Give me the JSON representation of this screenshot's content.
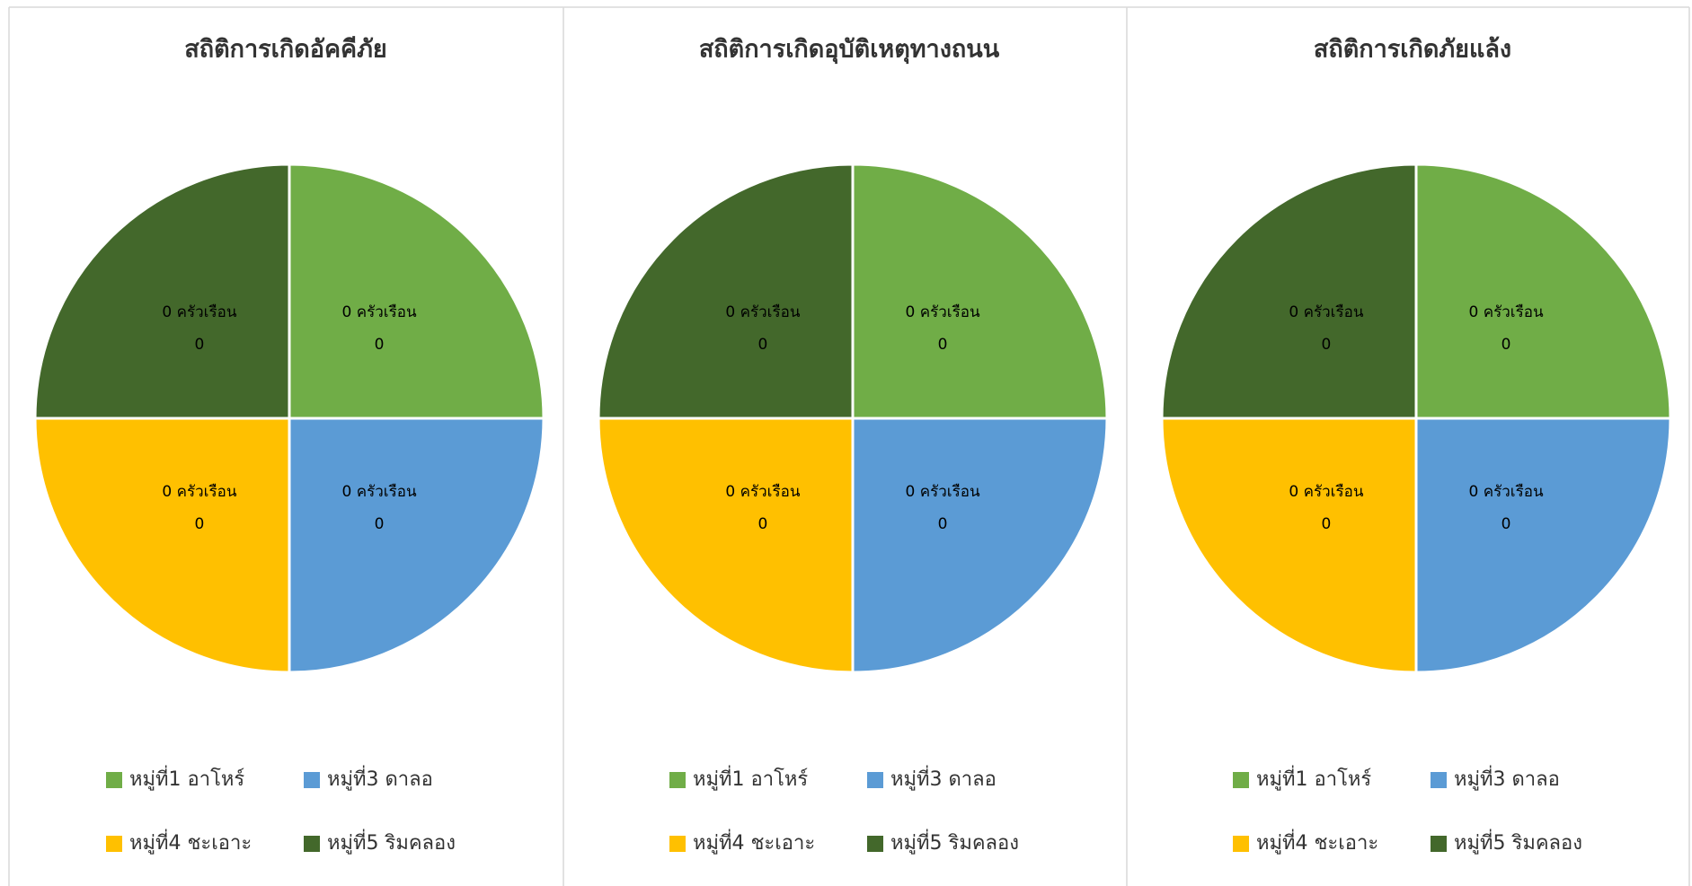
{
  "chart_data": [
    {
      "type": "pie",
      "title": "สถิติการเกิดอัคคีภัย",
      "categories": [
        "หมู่ที่1 อาโหร์",
        "หมู่ที่3 ดาลอ",
        "หมู่ที่4 ชะเอาะ",
        "หมู่ที่5 ริมคลอง"
      ],
      "values": [
        0,
        0,
        0,
        0
      ],
      "value_labels": [
        "0 ครัวเรือน",
        "0 ครัวเรือน",
        "0 ครัวเรือน",
        "0 ครัวเรือน"
      ],
      "colors": [
        "#70ad47",
        "#5b9bd5",
        "#ffc000",
        "#43682b"
      ]
    },
    {
      "type": "pie",
      "title": "สถิติการเกิดอุบัติเหตุทางถนน",
      "categories": [
        "หมู่ที่1 อาโหร์",
        "หมู่ที่3 ดาลอ",
        "หมู่ที่4 ชะเอาะ",
        "หมู่ที่5 ริมคลอง"
      ],
      "values": [
        0,
        0,
        0,
        0
      ],
      "value_labels": [
        "0 ครัวเรือน",
        "0 ครัวเรือน",
        "0 ครัวเรือน",
        "0 ครัวเรือน"
      ],
      "colors": [
        "#70ad47",
        "#5b9bd5",
        "#ffc000",
        "#43682b"
      ]
    },
    {
      "type": "pie",
      "title": "สถิติการเกิดภัยแล้ง",
      "categories": [
        "หมู่ที่1 อาโหร์",
        "หมู่ที่3 ดาลอ",
        "หมู่ที่4 ชะเอาะ",
        "หมู่ที่5 ริมคลอง"
      ],
      "values": [
        0,
        0,
        0,
        0
      ],
      "value_labels": [
        "0 ครัวเรือน",
        "0 ครัวเรือน",
        "0 ครัวเรือน",
        "0 ครัวเรือน"
      ],
      "colors": [
        "#70ad47",
        "#5b9bd5",
        "#ffc000",
        "#43682b"
      ]
    }
  ]
}
